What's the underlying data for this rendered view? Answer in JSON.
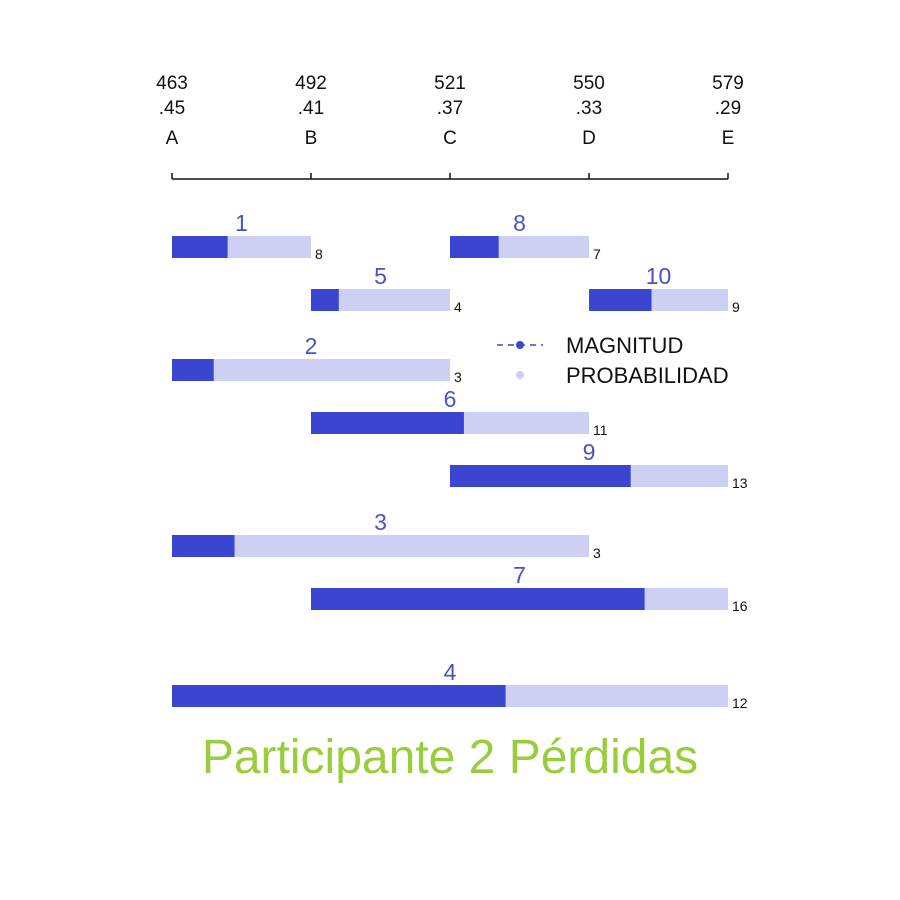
{
  "chart_data": {
    "type": "bar",
    "title": "Participante 2 Pérdidas",
    "axis": {
      "ticks": [
        {
          "magnitude": "463",
          "probability": ".45",
          "letter": "A"
        },
        {
          "magnitude": "492",
          "probability": ".41",
          "letter": "B"
        },
        {
          "magnitude": "521",
          "probability": ".37",
          "letter": "C"
        },
        {
          "magnitude": "550",
          "probability": ".33",
          "letter": "D"
        },
        {
          "magnitude": "579",
          "probability": ".29",
          "letter": "E"
        }
      ]
    },
    "legend": {
      "placement": "right",
      "items": [
        {
          "label": "MAGNITUD",
          "color": "#3a45d0",
          "marker": "dashed-line-with-dot"
        },
        {
          "label": "PROBABILIDAD",
          "color": "#cdd0f2",
          "marker": "dot"
        }
      ]
    },
    "bars": [
      {
        "label": "1",
        "start": "A",
        "end": "B",
        "fill_fraction": 0.4,
        "count": "8"
      },
      {
        "label": "8",
        "start": "C",
        "end": "D",
        "fill_fraction": 0.35,
        "count": "7"
      },
      {
        "label": "5",
        "start": "B",
        "end": "C",
        "fill_fraction": 0.2,
        "count": "4"
      },
      {
        "label": "10",
        "start": "D",
        "end": "E",
        "fill_fraction": 0.45,
        "count": "9"
      },
      {
        "label": "2",
        "start": "A",
        "end": "C",
        "fill_fraction": 0.15,
        "count": "3"
      },
      {
        "label": "6",
        "start": "B",
        "end": "D",
        "fill_fraction": 0.55,
        "count": "11"
      },
      {
        "label": "9",
        "start": "C",
        "end": "E",
        "fill_fraction": 0.65,
        "count": "13"
      },
      {
        "label": "3",
        "start": "A",
        "end": "D",
        "fill_fraction": 0.15,
        "count": "3"
      },
      {
        "label": "7",
        "start": "B",
        "end": "E",
        "fill_fraction": 0.8,
        "count": "16"
      },
      {
        "label": "4",
        "start": "A",
        "end": "E",
        "fill_fraction": 0.6,
        "count": "12"
      }
    ],
    "colors": {
      "magnitude": "#3a45d0",
      "probability": "#cdd0f2",
      "bar_label": "#4a52c4",
      "title": "#9acd3c",
      "axis": "#111111"
    }
  }
}
